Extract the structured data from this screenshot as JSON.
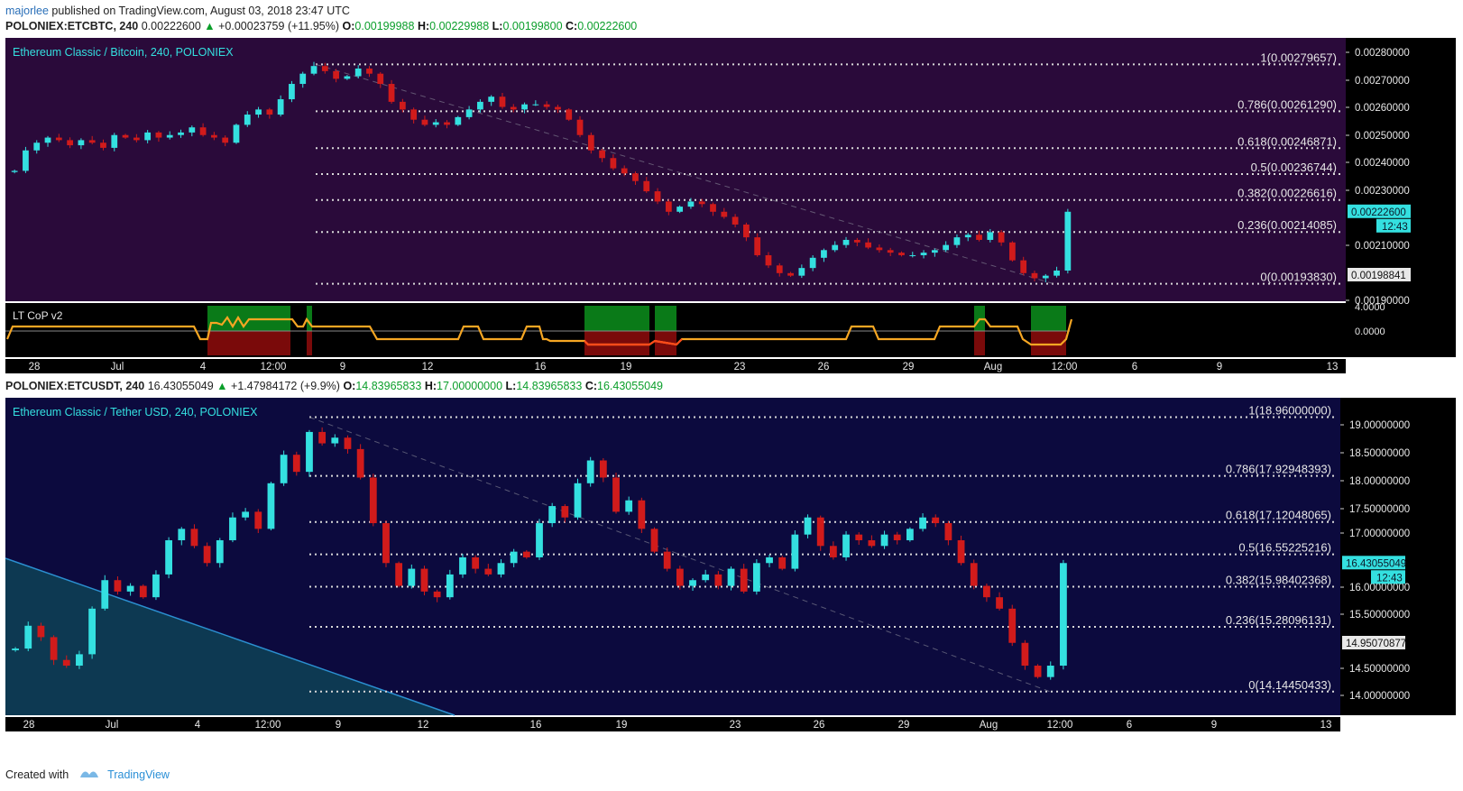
{
  "publish": {
    "author": "majorlee",
    "text": "published on TradingView.com, August 03, 2018 23:47 UTC"
  },
  "chart1": {
    "symbol": "POLONIEX:ETCBTC, 240",
    "last": "0.00222600",
    "change": "+0.00023759 (+11.95%)",
    "o": "0.00199988",
    "h": "0.00229988",
    "l": "0.00199800",
    "c": "0.00222600",
    "title": "Ethereum Classic / Bitcoin, 240, POLONIEX",
    "price_tag": "0.00222600",
    "time_tag": "12:43",
    "grey_tag": "0.00198841",
    "indicator_name": "LT CoP v2"
  },
  "chart2": {
    "symbol": "POLONIEX:ETCUSDT, 240",
    "last": "16.43055049",
    "change": "+1.47984172 (+9.9%)",
    "o": "14.83965833",
    "h": "17.00000000",
    "l": "14.83965833",
    "c": "16.43055049",
    "title": "Ethereum Classic / Tether USD, 240, POLONIEX",
    "price_tag": "16.43055049",
    "time_tag": "12:43",
    "grey_tag": "14.95070877"
  },
  "footer": {
    "created_with": "Created with",
    "brand": "TradingView"
  },
  "colors": {
    "panel1_bg": "#2a0a3a",
    "panel2_bg": "#0c0a3e",
    "bull": "#34e0e0",
    "bear": "#d11b1b",
    "title_text": "#34e0e0",
    "fib_line": "#d8d8d8",
    "indicator_green": "#0a8a1a",
    "indicator_red": "#8a0a0a",
    "indicator_line": "#f5a623"
  },
  "chart_data": [
    {
      "type": "candlestick",
      "title": "Ethereum Classic / Bitcoin, 240, POLONIEX",
      "x_ticks": [
        "28",
        "Jul",
        "4",
        "12:00",
        "9",
        "12",
        "16",
        "19",
        "23",
        "26",
        "29",
        "Aug",
        "12:00",
        "6",
        "9",
        "13"
      ],
      "y_ticks": [
        "0.00280000",
        "0.00270000",
        "0.00260000",
        "0.00250000",
        "0.00240000",
        "0.00230000",
        "0.00210000",
        "0.00190000"
      ],
      "ylim": [
        0.00187,
        0.0029
      ],
      "fib_levels": [
        {
          "label": "1(0.00279657)",
          "value": 0.00279657
        },
        {
          "label": "0.786(0.00261290)",
          "value": 0.0026129
        },
        {
          "label": "0.618(0.00246871)",
          "value": 0.00246871
        },
        {
          "label": "0.5(0.00236744)",
          "value": 0.00236744
        },
        {
          "label": "0.382(0.00226616)",
          "value": 0.00226616
        },
        {
          "label": "0.236(0.00214085)",
          "value": 0.00214085
        },
        {
          "label": "0(0.00193830)",
          "value": 0.0019383
        }
      ],
      "close_series": [
        0.00238,
        0.00246,
        0.00249,
        0.00251,
        0.0025,
        0.00248,
        0.0025,
        0.00249,
        0.00247,
        0.00252,
        0.00251,
        0.0025,
        0.00253,
        0.00251,
        0.00252,
        0.00253,
        0.00255,
        0.00252,
        0.00251,
        0.00249,
        0.00256,
        0.0026,
        0.00262,
        0.0026,
        0.00266,
        0.00272,
        0.00276,
        0.00279,
        0.00277,
        0.00274,
        0.00275,
        0.00278,
        0.00276,
        0.00272,
        0.00265,
        0.00262,
        0.00258,
        0.00256,
        0.00257,
        0.00256,
        0.00259,
        0.00262,
        0.00265,
        0.00267,
        0.00263,
        0.00262,
        0.00264,
        0.00264,
        0.00263,
        0.00262,
        0.00258,
        0.00252,
        0.00246,
        0.00243,
        0.00239,
        0.00237,
        0.00234,
        0.0023,
        0.00226,
        0.00222,
        0.00224,
        0.00226,
        0.00225,
        0.00222,
        0.0022,
        0.00217,
        0.00212,
        0.00205,
        0.00201,
        0.00198,
        0.00197,
        0.002,
        0.00204,
        0.00207,
        0.00209,
        0.00211,
        0.0021,
        0.00208,
        0.00207,
        0.00206,
        0.00205,
        0.00205,
        0.00206,
        0.00207,
        0.00209,
        0.00212,
        0.00213,
        0.00211,
        0.00214,
        0.0021,
        0.00203,
        0.00198,
        0.00196,
        0.00197,
        0.00199,
        0.00222
      ],
      "indicator": {
        "name": "LT CoP v2",
        "y_ticks": [
          "4.0000",
          "0.0000"
        ]
      }
    },
    {
      "type": "candlestick",
      "title": "Ethereum Classic / Tether USD, 240, POLONIEX",
      "x_ticks": [
        "28",
        "Jul",
        "4",
        "12:00",
        "9",
        "12",
        "16",
        "19",
        "23",
        "26",
        "29",
        "Aug",
        "12:00",
        "6",
        "9",
        "13"
      ],
      "y_ticks": [
        "19.00000000",
        "18.50000000",
        "18.00000000",
        "17.50000000",
        "17.00000000",
        "16.00000000",
        "15.50000000",
        "14.50000000",
        "14.00000000"
      ],
      "ylim": [
        13.73,
        19.3
      ],
      "fib_levels": [
        {
          "label": "1(18.96000000)",
          "value": 18.96
        },
        {
          "label": "0.786(17.92948393)",
          "value": 17.92948393
        },
        {
          "label": "0.618(17.12048065)",
          "value": 17.12048065
        },
        {
          "label": "0.5(16.55225216)",
          "value": 16.55225216
        },
        {
          "label": "0.382(15.98402368)",
          "value": 15.98402368
        },
        {
          "label": "0.236(15.28096131)",
          "value": 15.28096131
        },
        {
          "label": "0(14.14450433)",
          "value": 14.14450433
        }
      ],
      "close_series": [
        14.9,
        15.3,
        15.1,
        14.7,
        14.6,
        14.8,
        15.6,
        16.1,
        15.9,
        16.0,
        15.8,
        16.2,
        16.8,
        17.0,
        16.7,
        16.4,
        16.8,
        17.2,
        17.3,
        17.0,
        17.8,
        18.3,
        18.0,
        18.7,
        18.5,
        18.6,
        18.4,
        17.9,
        17.1,
        16.4,
        16.0,
        16.3,
        15.9,
        15.8,
        16.2,
        16.5,
        16.3,
        16.2,
        16.4,
        16.6,
        16.5,
        17.1,
        17.4,
        17.2,
        17.8,
        18.2,
        17.9,
        17.3,
        17.5,
        17.0,
        16.6,
        16.3,
        16.0,
        16.1,
        16.2,
        16.0,
        16.3,
        15.9,
        16.4,
        16.5,
        16.3,
        16.9,
        17.2,
        16.7,
        16.5,
        16.9,
        16.8,
        16.7,
        16.9,
        16.8,
        17.0,
        17.2,
        17.1,
        16.8,
        16.4,
        16.0,
        15.8,
        15.6,
        15.0,
        14.6,
        14.4,
        14.6,
        16.4
      ]
    }
  ]
}
